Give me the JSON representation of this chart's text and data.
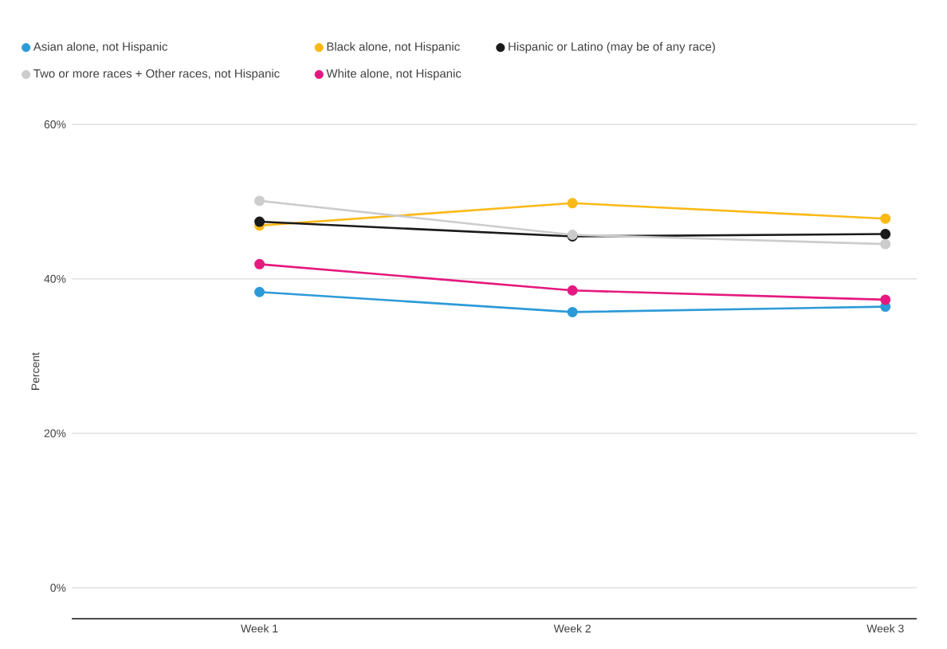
{
  "chart_data": {
    "type": "line",
    "ylabel": "Percent",
    "categories": [
      "Week 1",
      "Week 2",
      "Week 3"
    ],
    "series": [
      {
        "name": "Asian alone, not Hispanic",
        "color": "#2d9ad8",
        "values": [
          38.3,
          35.7,
          36.4
        ]
      },
      {
        "name": "Black alone, not Hispanic",
        "color": "#fbb917",
        "values": [
          46.9,
          49.8,
          47.8
        ]
      },
      {
        "name": "Hispanic or Latino (may be of any race)",
        "color": "#1a1a1a",
        "values": [
          47.4,
          45.5,
          45.8
        ]
      },
      {
        "name": "Two or more races + Other races, not Hispanic",
        "color": "#cccccc",
        "values": [
          50.1,
          45.7,
          44.5
        ]
      },
      {
        "name": "White alone, not Hispanic",
        "color": "#e5197f",
        "values": [
          41.9,
          38.5,
          37.3
        ]
      }
    ],
    "ylim": [
      -4,
      60
    ],
    "yticks": [
      {
        "value": 0,
        "label": "0%"
      },
      {
        "value": 20,
        "label": "20%"
      },
      {
        "value": 40,
        "label": "40%"
      },
      {
        "value": 60,
        "label": "60%"
      }
    ],
    "grid": "y",
    "legend": "top",
    "marker": "circle",
    "line_style": "solid"
  }
}
